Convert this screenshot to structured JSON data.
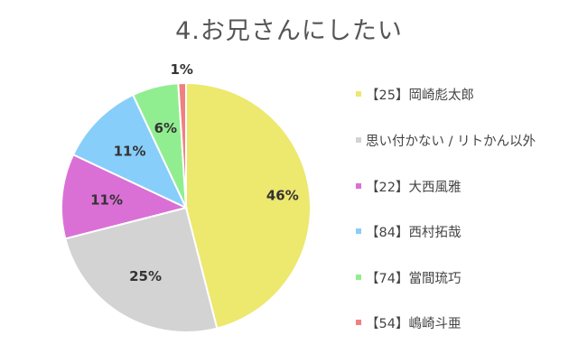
{
  "chart_data": {
    "type": "pie",
    "title": "4.お兄さんにしたい",
    "categories": [
      "【25】岡崎彪太郎",
      "思い付かない / リトかん以外",
      "【22】大西風雅",
      "【84】西村拓哉",
      "【74】當間琉巧",
      "【54】嶋崎斗亜"
    ],
    "values": [
      46,
      25,
      11,
      11,
      6,
      1
    ],
    "labels": [
      "46%",
      "25%",
      "11%",
      "11%",
      "6%",
      "1%"
    ],
    "colors": [
      "#ede86e",
      "#d3d3d3",
      "#da70d6",
      "#87cefa",
      "#90ee90",
      "#f08080"
    ],
    "legend_position": "right"
  }
}
